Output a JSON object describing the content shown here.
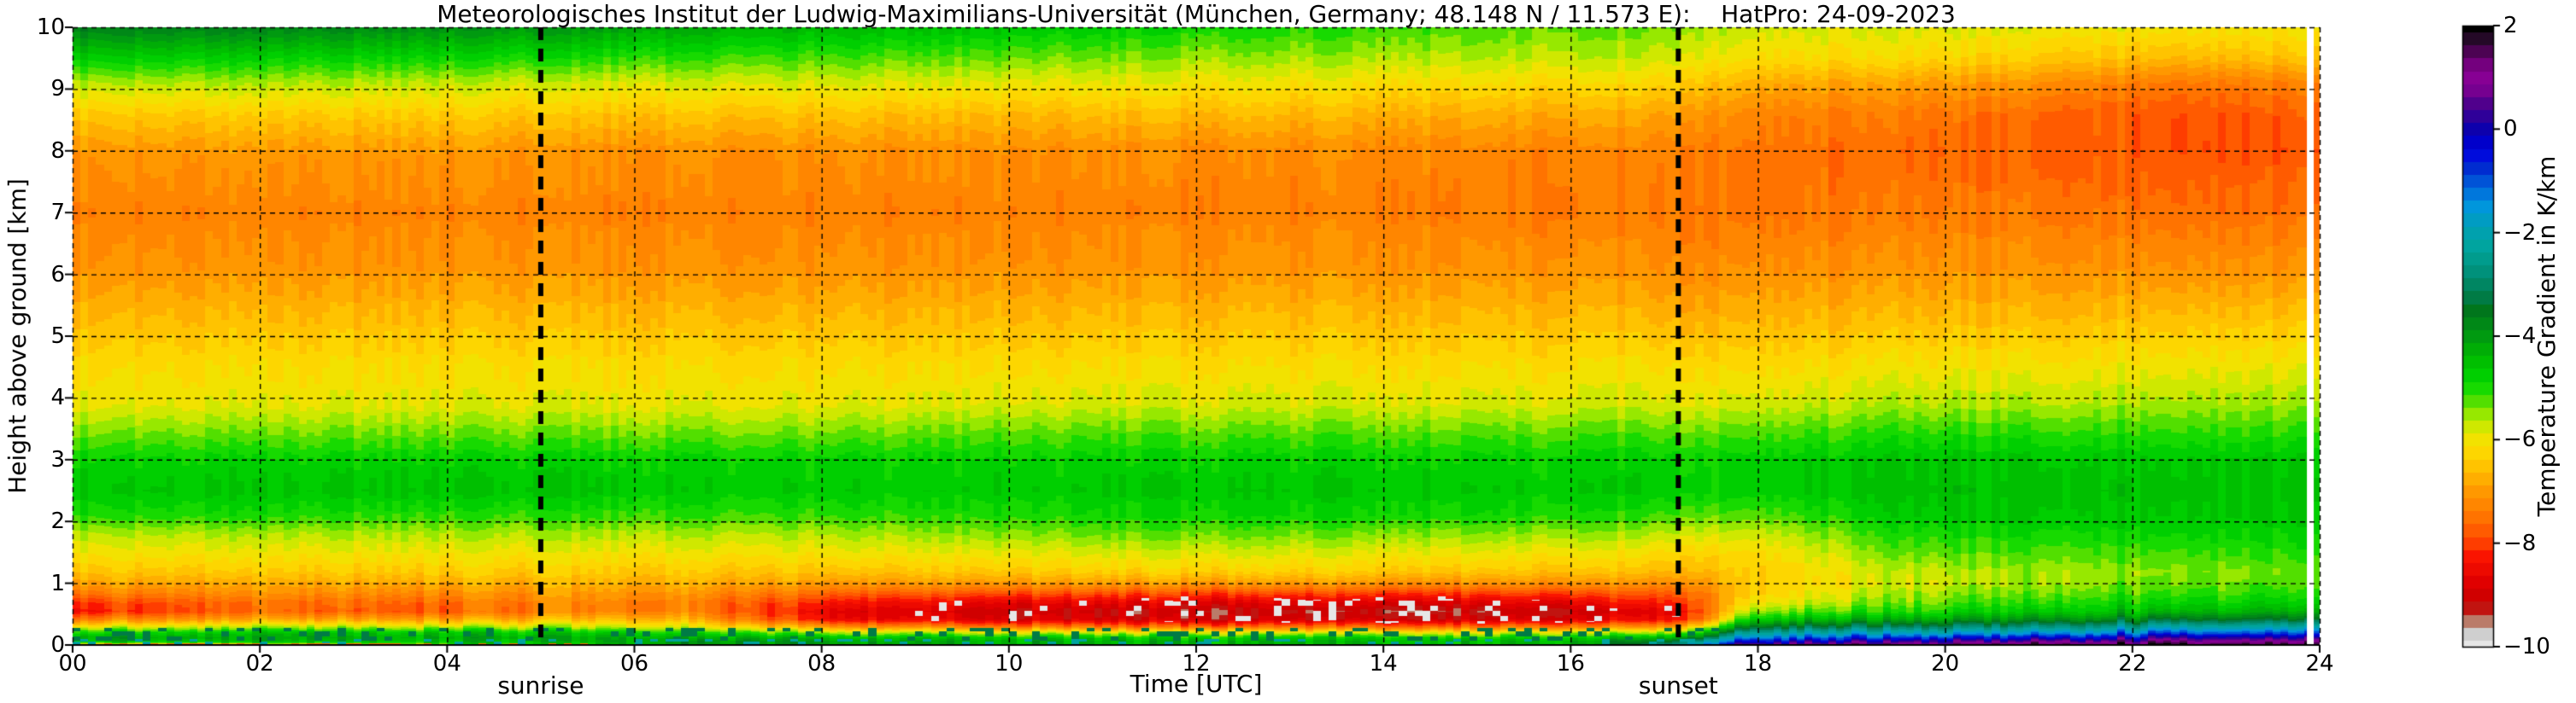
{
  "title": "Meteorologisches Institut der Ludwig-Maximilians-Universität (München, Germany; 48.148 N / 11.573 E):    HatPro: 24-09-2023",
  "axes": {
    "x": {
      "label": "Time [UTC]",
      "range": [
        0,
        24
      ],
      "tick_values": [
        0,
        2,
        4,
        6,
        8,
        10,
        12,
        14,
        16,
        18,
        20,
        22,
        24
      ],
      "tick_labels": [
        "00",
        "02",
        "04",
        "06",
        "08",
        "10",
        "12",
        "14",
        "16",
        "18",
        "20",
        "22",
        "24"
      ]
    },
    "y": {
      "label": "Height above ground [km]",
      "range": [
        0,
        10
      ],
      "tick_values": [
        0,
        1,
        2,
        3,
        4,
        5,
        6,
        7,
        8,
        9,
        10
      ],
      "tick_labels": [
        "0",
        "1",
        "2",
        "3",
        "4",
        "5",
        "6",
        "7",
        "8",
        "9",
        "10"
      ]
    }
  },
  "annotations": [
    {
      "label": "sunrise",
      "time_utc": 5.0
    },
    {
      "label": "sunset",
      "time_utc": 17.15
    }
  ],
  "colorbar": {
    "label": "Temperature Gradient in K/km",
    "range": [
      -10,
      2
    ],
    "tick_values": [
      2,
      0,
      -2,
      -4,
      -6,
      -8,
      -10
    ],
    "tick_labels": [
      "2",
      "0",
      "−2",
      "−4",
      "−6",
      "−8",
      "−10"
    ],
    "stops": [
      [
        -10,
        "#e6e6e6"
      ],
      [
        -9.75,
        "#cfcfcf"
      ],
      [
        -9.6,
        "#c4a89e"
      ],
      [
        -9.45,
        "#b5654f"
      ],
      [
        -9.2,
        "#c40000"
      ],
      [
        -8.75,
        "#e00000"
      ],
      [
        -8.25,
        "#fa1400"
      ],
      [
        -7.9,
        "#ff4d00"
      ],
      [
        -7.5,
        "#ff7300"
      ],
      [
        -7.0,
        "#ff9800"
      ],
      [
        -6.6,
        "#ffbb00"
      ],
      [
        -6.3,
        "#ffd300"
      ],
      [
        -6.0,
        "#f2e200"
      ],
      [
        -5.75,
        "#cfe800"
      ],
      [
        -5.5,
        "#97e800"
      ],
      [
        -5.2,
        "#44dd00"
      ],
      [
        -4.9,
        "#00d900"
      ],
      [
        -4.4,
        "#00b800"
      ],
      [
        -3.9,
        "#009214"
      ],
      [
        -3.5,
        "#00761c"
      ],
      [
        -3.2,
        "#007c4d"
      ],
      [
        -2.8,
        "#008f77"
      ],
      [
        -2.3,
        "#00a49c"
      ],
      [
        -1.9,
        "#00a0b4"
      ],
      [
        -1.5,
        "#0096dc"
      ],
      [
        -1.1,
        "#0064dc"
      ],
      [
        -0.8,
        "#0032cd"
      ],
      [
        -0.4,
        "#0000e1"
      ],
      [
        -0.1,
        "#0000b4"
      ],
      [
        0.2,
        "#28009b"
      ],
      [
        0.5,
        "#50008c"
      ],
      [
        0.8,
        "#7d0091"
      ],
      [
        1.1,
        "#8c0096"
      ],
      [
        1.35,
        "#64006e"
      ],
      [
        1.6,
        "#3c0541"
      ],
      [
        1.8,
        "#1c0a1e"
      ],
      [
        2,
        "#000000"
      ]
    ]
  },
  "chart_data": {
    "type": "heatmap",
    "units": "K/km",
    "xlabel": "Time [UTC]",
    "ylabel": "Height above ground [km]",
    "xlim": [
      0,
      24
    ],
    "ylim": [
      0,
      10
    ],
    "grid": true,
    "missing_data_time_utc": 23.9,
    "x_hours": [
      0,
      2,
      4,
      5.2,
      6.5,
      8,
      10,
      12,
      14,
      16,
      17.2,
      18,
      19.5,
      21,
      22.5,
      24
    ],
    "heights_km": [
      0,
      0.05,
      0.12,
      0.2,
      0.3,
      0.42,
      0.55,
      0.7,
      0.85,
      1.0,
      1.2,
      1.5,
      1.8,
      2.1,
      2.5,
      3.0,
      3.4,
      3.9,
      4.6,
      5.3,
      6.0,
      7.0,
      8.0,
      8.6,
      9.1,
      9.5,
      10.0
    ],
    "values": [
      [
        -7.0,
        -4.6,
        -4.0,
        -4.6,
        -5.8,
        -7.2,
        -8.2,
        -7.9,
        -7.3,
        -6.8,
        -6.4,
        -6.0,
        -5.6,
        -5.0,
        -4.6,
        -4.8,
        -5.3,
        -5.9,
        -6.2,
        -6.6,
        -7.0,
        -7.3,
        -7.0,
        -6.4,
        -5.6,
        -4.7,
        -3.6
      ],
      [
        -7.0,
        -4.6,
        -4.2,
        -4.5,
        -5.6,
        -6.8,
        -7.6,
        -7.5,
        -7.1,
        -6.8,
        -6.4,
        -6.0,
        -5.6,
        -5.0,
        -4.6,
        -4.8,
        -5.3,
        -5.9,
        -6.2,
        -6.6,
        -7.0,
        -7.3,
        -7.0,
        -6.4,
        -5.6,
        -4.8,
        -3.7
      ],
      [
        -5.8,
        -4.6,
        -4.3,
        -4.6,
        -5.7,
        -6.9,
        -7.8,
        -7.6,
        -7.2,
        -6.8,
        -6.4,
        -6.0,
        -5.6,
        -5.1,
        -4.6,
        -4.8,
        -5.3,
        -5.9,
        -6.2,
        -6.6,
        -7.0,
        -7.3,
        -7.0,
        -6.4,
        -5.7,
        -4.9,
        -3.9
      ],
      [
        -5.2,
        -4.5,
        -4.2,
        -4.6,
        -5.6,
        -6.6,
        -7.3,
        -7.2,
        -7.0,
        -6.7,
        -6.4,
        -6.0,
        -5.6,
        -5.1,
        -4.6,
        -4.8,
        -5.3,
        -5.9,
        -6.2,
        -6.6,
        -7.0,
        -7.3,
        -7.1,
        -6.5,
        -5.8,
        -5.0,
        -4.0
      ],
      [
        -4.5,
        -3.8,
        -4.2,
        -4.8,
        -5.8,
        -6.6,
        -7.2,
        -7.3,
        -7.0,
        -6.7,
        -6.4,
        -6.0,
        -5.6,
        -5.1,
        -4.7,
        -4.8,
        -5.3,
        -5.9,
        -6.2,
        -6.6,
        -7.0,
        -7.3,
        -7.1,
        -6.5,
        -5.8,
        -5.1,
        -4.2
      ],
      [
        -4.6,
        -4.0,
        -4.4,
        -5.4,
        -7.0,
        -8.4,
        -8.6,
        -8.2,
        -7.6,
        -7.0,
        -6.5,
        -6.0,
        -5.6,
        -5.1,
        -4.7,
        -4.8,
        -5.3,
        -5.9,
        -6.2,
        -6.6,
        -7.0,
        -7.3,
        -7.1,
        -6.5,
        -5.8,
        -5.2,
        -4.4
      ],
      [
        -4.8,
        -4.2,
        -4.6,
        -5.6,
        -7.4,
        -8.8,
        -9.0,
        -8.6,
        -7.8,
        -7.0,
        -6.4,
        -5.9,
        -5.4,
        -5.0,
        -4.7,
        -4.8,
        -5.2,
        -5.8,
        -6.2,
        -6.6,
        -7.0,
        -7.3,
        -7.1,
        -6.6,
        -5.9,
        -5.3,
        -4.6
      ],
      [
        -5.0,
        -4.3,
        -4.7,
        -5.8,
        -7.6,
        -9.0,
        -9.2,
        -8.7,
        -7.9,
        -7.0,
        -6.3,
        -5.8,
        -5.3,
        -4.9,
        -4.65,
        -4.8,
        -5.2,
        -5.8,
        -6.2,
        -6.6,
        -7.0,
        -7.3,
        -7.2,
        -6.6,
        -6.0,
        -5.5,
        -4.9
      ],
      [
        -5.0,
        -4.4,
        -4.8,
        -5.8,
        -7.6,
        -9.0,
        -9.3,
        -8.8,
        -8.0,
        -7.1,
        -6.4,
        -5.9,
        -5.4,
        -4.9,
        -4.65,
        -4.8,
        -5.2,
        -5.8,
        -6.2,
        -6.6,
        -7.0,
        -7.3,
        -7.2,
        -6.7,
        -6.1,
        -5.6,
        -5.1
      ],
      [
        -4.9,
        -4.3,
        -4.7,
        -5.7,
        -7.4,
        -8.8,
        -9.1,
        -8.6,
        -7.9,
        -7.1,
        -6.5,
        -6.0,
        -5.5,
        -5.0,
        -4.7,
        -4.8,
        -5.2,
        -5.8,
        -6.2,
        -6.6,
        -7.0,
        -7.4,
        -7.3,
        -6.8,
        -6.2,
        -5.7,
        -5.3
      ],
      [
        -2.0,
        -2.8,
        -4.0,
        -5.2,
        -6.8,
        -8.2,
        -8.4,
        -8.0,
        -7.6,
        -7.1,
        -6.6,
        -6.2,
        -5.7,
        -5.2,
        -4.7,
        -4.8,
        -5.2,
        -5.8,
        -6.2,
        -6.7,
        -7.1,
        -7.4,
        -7.3,
        -6.9,
        -6.3,
        -5.8,
        -5.4
      ],
      [
        1.0,
        0.0,
        -1.2,
        -2.2,
        -3.4,
        -4.6,
        -5.4,
        -6.0,
        -6.3,
        -6.4,
        -6.4,
        -6.2,
        -5.8,
        -5.3,
        -4.8,
        -4.8,
        -5.2,
        -5.8,
        -6.3,
        -6.7,
        -7.1,
        -7.5,
        -7.5,
        -7.3,
        -6.8,
        -6.2,
        -5.8
      ],
      [
        1.4,
        0.6,
        -0.6,
        -1.8,
        -3.0,
        -4.2,
        -5.0,
        -5.4,
        -5.6,
        -5.8,
        -5.7,
        -5.3,
        -5.0,
        -4.7,
        -4.5,
        -4.6,
        -5.0,
        -5.6,
        -6.1,
        -6.6,
        -7.0,
        -7.4,
        -7.6,
        -7.4,
        -6.9,
        -6.2,
        -5.8
      ],
      [
        1.7,
        1.0,
        -0.2,
        -1.4,
        -2.6,
        -3.8,
        -4.6,
        -5.0,
        -5.3,
        -5.5,
        -5.5,
        -5.2,
        -4.9,
        -4.6,
        -4.5,
        -4.6,
        -5.0,
        -5.6,
        -6.1,
        -6.6,
        -7.0,
        -7.4,
        -7.7,
        -7.6,
        -7.1,
        -6.4,
        -5.9
      ],
      [
        1.8,
        1.2,
        0.2,
        -1.0,
        -2.2,
        -3.5,
        -4.4,
        -4.8,
        -5.1,
        -5.3,
        -5.4,
        -5.1,
        -4.8,
        -4.6,
        -4.5,
        -4.6,
        -5.0,
        -5.5,
        -6.0,
        -6.5,
        -7.0,
        -7.5,
        -7.8,
        -7.8,
        -7.4,
        -6.6,
        -6.0
      ],
      [
        1.9,
        1.4,
        0.4,
        -0.8,
        -2.0,
        -3.3,
        -4.2,
        -4.7,
        -5.0,
        -5.2,
        -5.3,
        -5.0,
        -4.8,
        -4.6,
        -4.5,
        -4.6,
        -5.0,
        -5.5,
        -6.0,
        -6.5,
        -7.0,
        -7.5,
        -7.8,
        -7.7,
        -7.3,
        -6.5,
        -6.0
      ]
    ]
  }
}
